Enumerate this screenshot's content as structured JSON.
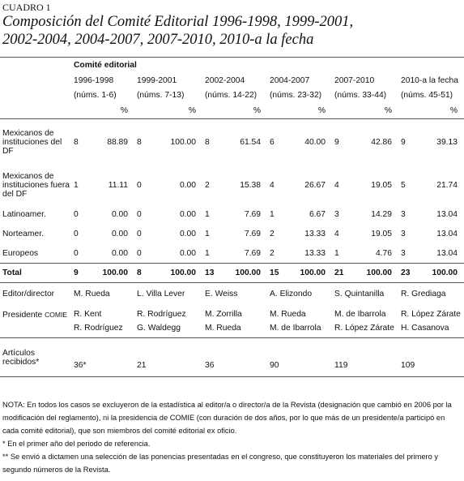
{
  "header": {
    "label": "CUADRO 1",
    "title_lines": [
      "Composición del Comité Editorial 1996-1998, 1999-2001,",
      "2002-2004, 2004-2007, 2007-2010, 2010-a la fecha"
    ]
  },
  "table": {
    "group_header": "Comité editorial",
    "percent_label": "%",
    "columns": [
      {
        "period": "1996-1998",
        "nums": "(núms. 1-6)"
      },
      {
        "period": "1999-2001",
        "nums": "(núms. 7-13)"
      },
      {
        "period": "2002-2004",
        "nums": "(núms. 14-22)"
      },
      {
        "period": "2004-2007",
        "nums": "(núms. 23-32)"
      },
      {
        "period": "2007-2010",
        "nums": "(núms. 33-44)"
      },
      {
        "period": "2010-a la fecha",
        "nums": "(núms. 45-51)"
      }
    ],
    "rows": [
      {
        "label": "Mexicanos de instituciones del DF",
        "values": [
          [
            "8",
            "88.89"
          ],
          [
            "8",
            "100.00"
          ],
          [
            "8",
            "61.54"
          ],
          [
            "6",
            "40.00"
          ],
          [
            "9",
            "42.86"
          ],
          [
            "9",
            "39.13"
          ]
        ]
      },
      {
        "label": "Mexicanos de instituciones fuera del DF",
        "values": [
          [
            "1",
            "11.11"
          ],
          [
            "0",
            "0.00"
          ],
          [
            "2",
            "15.38"
          ],
          [
            "4",
            "26.67"
          ],
          [
            "4",
            "19.05"
          ],
          [
            "5",
            "21.74"
          ]
        ]
      },
      {
        "label": "Latinoamer.",
        "values": [
          [
            "0",
            "0.00"
          ],
          [
            "0",
            "0.00"
          ],
          [
            "1",
            "7.69"
          ],
          [
            "1",
            "6.67"
          ],
          [
            "3",
            "14.29"
          ],
          [
            "3",
            "13.04"
          ]
        ]
      },
      {
        "label": "Norteamer.",
        "values": [
          [
            "0",
            "0.00"
          ],
          [
            "0",
            "0.00"
          ],
          [
            "1",
            "7.69"
          ],
          [
            "2",
            "13.33"
          ],
          [
            "4",
            "19.05"
          ],
          [
            "3",
            "13.04"
          ]
        ]
      },
      {
        "label": "Europeos",
        "values": [
          [
            "0",
            "0.00"
          ],
          [
            "0",
            "0.00"
          ],
          [
            "1",
            "7.69"
          ],
          [
            "2",
            "13.33"
          ],
          [
            "1",
            "4.76"
          ],
          [
            "3",
            "13.04"
          ]
        ]
      }
    ],
    "total": {
      "label": "Total",
      "values": [
        [
          "9",
          "100.00"
        ],
        [
          "8",
          "100.00"
        ],
        [
          "13",
          "100.00"
        ],
        [
          "15",
          "100.00"
        ],
        [
          "21",
          "100.00"
        ],
        [
          "23",
          "100.00"
        ]
      ]
    },
    "editor": {
      "label": "Editor/director",
      "values": [
        "M. Rueda",
        "L. Villa Lever",
        "E. Weiss",
        "A. Elizondo",
        "S. Quintanilla",
        "R. Grediaga"
      ]
    },
    "presidente": {
      "label": "Presidente",
      "label_caps": "COMIE",
      "values": [
        [
          "R. Kent",
          "R. Rodríguez"
        ],
        [
          "R. Rodríguez",
          "G. Waldegg"
        ],
        [
          "M. Zorrilla",
          "M. Rueda"
        ],
        [
          "M. Rueda",
          "M. de Ibarrola"
        ],
        [
          "M. de Ibarrola",
          "R. López Zárate"
        ],
        [
          "R. López Zárate",
          "H. Casanova"
        ]
      ]
    },
    "articulos": {
      "label": "Artículos recibidos*",
      "values": [
        "36*",
        "21",
        "36",
        "90",
        "119",
        "109"
      ]
    }
  },
  "notes": [
    "NOTA: En todos los casos se excluyeron de la estadística al editor/a o director/a de la Revista (designación que cambió en 2006 por la modificación del reglamento), ni la presidencia de COMIE (con duración de dos años, por lo que más de un presidente/a participó en cada comité editorial), que son miembros del comité editorial ex oficio.",
    "* En el primer año del periodo de referencia.",
    "** Se envió a dictamen una selección de las ponencias presentadas en el congreso, que constituyeron los materiales del primero y segundo números de la Revista."
  ]
}
